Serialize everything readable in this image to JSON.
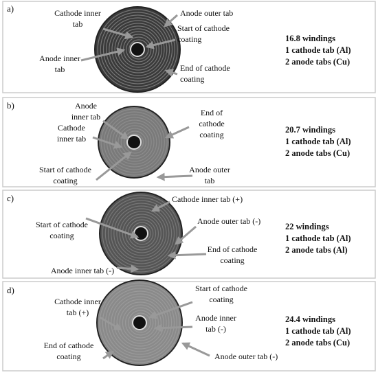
{
  "panels": [
    {
      "label": "a)",
      "annotations": [
        [
          "Cathode inner",
          "tab"
        ],
        [
          "Anode outer tab"
        ],
        [
          "Start of cathode",
          "coating"
        ],
        [
          "Anode inner",
          "tab"
        ],
        [
          "End of cathode",
          "coating"
        ]
      ],
      "summary": [
        "16.8 windings",
        "1 cathode tab (Al)",
        "2 anode tabs (Cu)"
      ]
    },
    {
      "label": "b)",
      "annotations": [
        [
          "Anode",
          "inner tab"
        ],
        [
          "Cathode",
          "inner tab"
        ],
        [
          "Start of cathode",
          "coating"
        ],
        [
          "End of",
          "cathode",
          "coating"
        ],
        [
          "Anode outer",
          "tab"
        ]
      ],
      "summary": [
        "20.7 windings",
        "1 cathode tab (Al)",
        "2 anode tabs (Cu)"
      ]
    },
    {
      "label": "c)",
      "annotations": [
        [
          "Cathode inner tab (+)"
        ],
        [
          "Start of cathode",
          "coating"
        ],
        [
          "Anode outer tab (-)"
        ],
        [
          "End of cathode",
          "coating"
        ],
        [
          "Anode inner tab (-)"
        ]
      ],
      "summary": [
        "22 windings",
        "1 cathode tab (Al)",
        "2 anode tabs (Al)"
      ]
    },
    {
      "label": "d)",
      "annotations": [
        [
          "Start of cathode",
          "coating"
        ],
        [
          "Cathode inner",
          "tab (+)"
        ],
        [
          "Anode inner",
          "tab (-)"
        ],
        [
          "End of cathode",
          "coating"
        ],
        [
          "Anode outer tab (-)"
        ]
      ],
      "summary": [
        "24.4 windings",
        "1 cathode tab (Al)",
        "2 anode tabs (Cu)"
      ]
    }
  ]
}
